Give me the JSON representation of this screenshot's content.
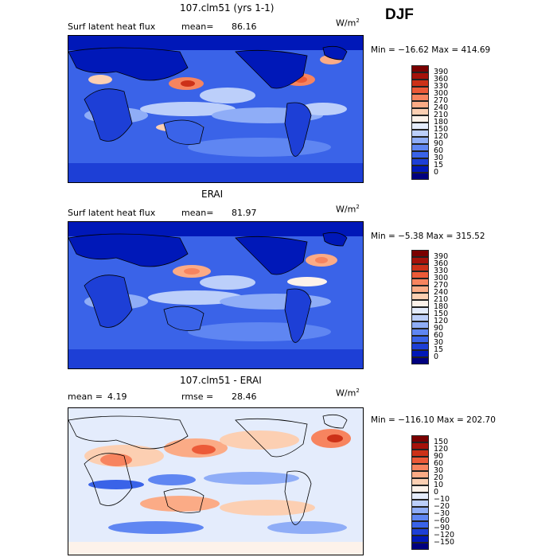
{
  "season": "DJF",
  "colors": {
    "abs_scale": [
      "#00007f",
      "#0018b8",
      "#1d3fd6",
      "#3a63e8",
      "#5f86f2",
      "#8fadf7",
      "#bccffa",
      "#e4ecfc",
      "#fdf2ea",
      "#fccfb2",
      "#fbab86",
      "#f7845f",
      "#ec5a38",
      "#cc3118",
      "#a5120a",
      "#7a0000"
    ],
    "diff_scale": [
      "#00007f",
      "#0018b8",
      "#1d3fd6",
      "#3a63e8",
      "#5f86f2",
      "#8fadf7",
      "#bccffa",
      "#e4ecfc",
      "#fdf2ea",
      "#fccfb2",
      "#fbab86",
      "#f7845f",
      "#ec5a38",
      "#cc3118",
      "#a5120a",
      "#7a0000"
    ]
  },
  "panels": [
    {
      "title": "107.clm51 (yrs 1-1)",
      "left_label": "Surf latent heat flux",
      "mean_label": "mean=",
      "mean_value": "86.16",
      "units": "W/m",
      "units_sup": "2",
      "minmax": "Min = −16.62 Max = 414.69",
      "colorbar_labels": [
        "390",
        "360",
        "330",
        "300",
        "270",
        "240",
        "210",
        "180",
        "150",
        "120",
        "90",
        "60",
        "30",
        "15",
        "0"
      ]
    },
    {
      "title": "ERAI",
      "left_label": "Surf latent heat flux",
      "mean_label": "mean=",
      "mean_value": "81.97",
      "units": "W/m",
      "units_sup": "2",
      "minmax": "Min = −5.38 Max = 315.52",
      "colorbar_labels": [
        "390",
        "360",
        "330",
        "300",
        "270",
        "240",
        "210",
        "180",
        "150",
        "120",
        "90",
        "60",
        "30",
        "15",
        "0"
      ]
    },
    {
      "title": "107.clm51 - ERAI",
      "mean_label": "mean =",
      "mean_value": "4.19",
      "rmse_label": "rmse =",
      "rmse_value": "28.46",
      "units": "W/m",
      "units_sup": "2",
      "minmax": "Min = −116.10 Max = 202.70",
      "colorbar_labels": [
        "150",
        "120",
        "90",
        "60",
        "30",
        "20",
        "10",
        "0",
        "−10",
        "−20",
        "−30",
        "−60",
        "−90",
        "−120",
        "−150"
      ]
    }
  ]
}
